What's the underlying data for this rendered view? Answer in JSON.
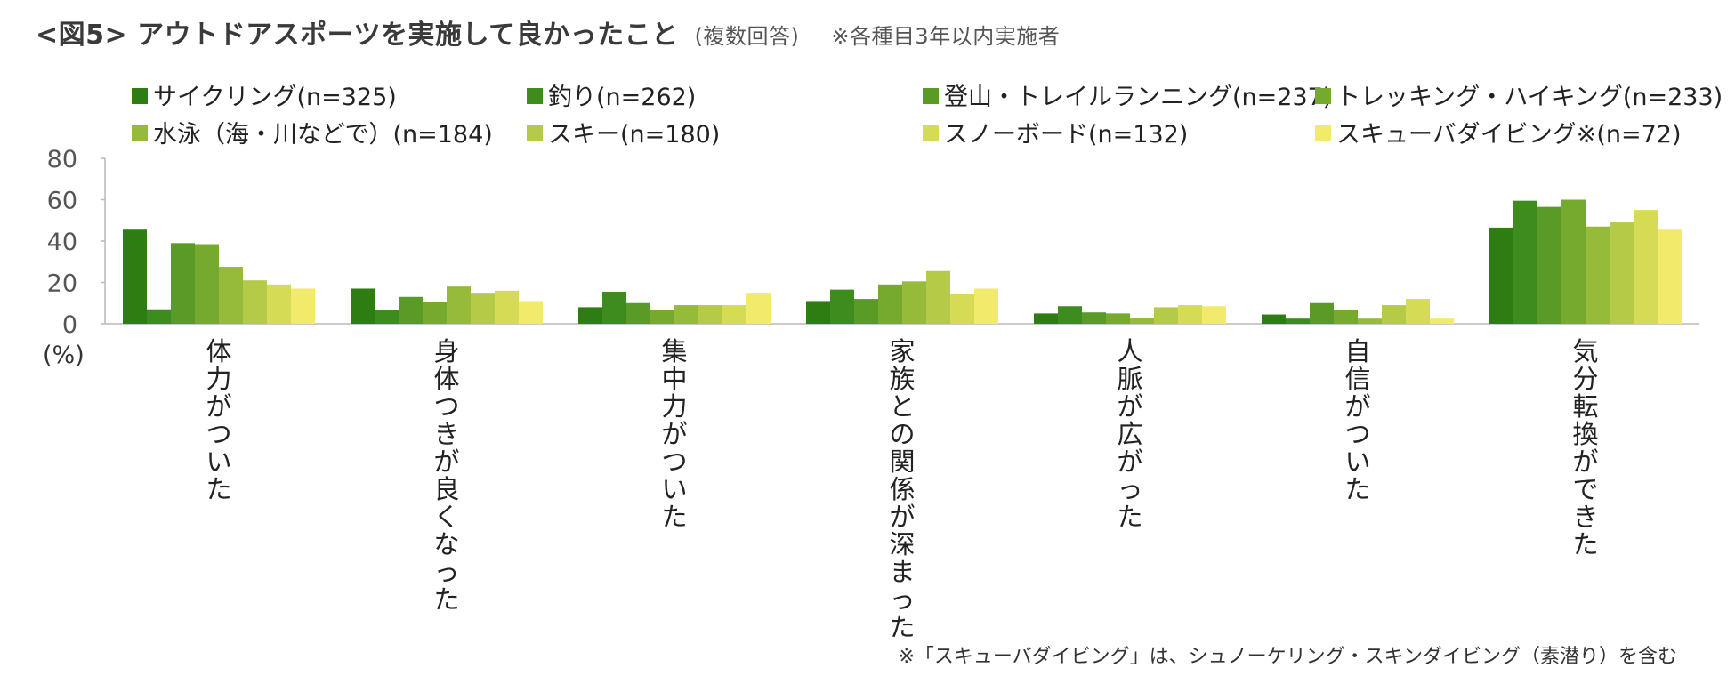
{
  "header": {
    "title": "<図5> アウトドアスポーツを実施して良かったこと",
    "subtitle": "(複数回答)",
    "note": "※各種目3年以内実施者"
  },
  "footnote": "※「スキューバダイビング」は、シュノーケリング・スキンダイビング（素潜り）を含む",
  "chart_data": {
    "type": "bar",
    "title": "<図5> アウトドアスポーツを実施して良かったこと",
    "ylabel": "(%)",
    "ylim": [
      0,
      80
    ],
    "yticks": [
      0,
      20,
      40,
      60,
      80
    ],
    "grid": false,
    "legend_position": "top",
    "categories": [
      "体力がついた",
      "身体つきが良くなった",
      "集中力がついた",
      "家族との関係が深まった",
      "人脈が広がった",
      "自信がついた",
      "気分転換ができた"
    ],
    "series": [
      {
        "name": "サイクリング(n=325)",
        "color": "#2e7d12",
        "values": [
          45.5,
          17,
          8,
          11,
          5,
          4.5,
          46.5
        ]
      },
      {
        "name": "釣り(n=262)",
        "color": "#3f8c1e",
        "values": [
          7,
          6.5,
          15.5,
          16.5,
          8.5,
          2.5,
          59.5
        ]
      },
      {
        "name": "登山・トレイルランニング(n=237)",
        "color": "#5a9a26",
        "values": [
          39,
          13,
          10,
          12,
          5.5,
          10,
          56.5
        ]
      },
      {
        "name": "トレッキング・ハイキング(n=233)",
        "color": "#76aa2f",
        "values": [
          38.5,
          10.5,
          6.5,
          19,
          5,
          6.5,
          60
        ]
      },
      {
        "name": "水泳（海・川などで）(n=184)",
        "color": "#96bb3b",
        "values": [
          27.5,
          18,
          9,
          20.5,
          3,
          2.5,
          47
        ]
      },
      {
        "name": "スキー(n=180)",
        "color": "#b5cb48",
        "values": [
          21,
          15,
          9,
          25.5,
          8,
          9,
          49
        ]
      },
      {
        "name": "スノーボード(n=132)",
        "color": "#d6db55",
        "values": [
          19,
          16,
          9,
          14.5,
          9,
          12,
          55
        ]
      },
      {
        "name": "スキューバダイビング※(n=72)",
        "color": "#f1ea6a",
        "values": [
          17,
          11,
          15,
          17,
          8.5,
          2.5,
          45.5
        ]
      }
    ]
  }
}
